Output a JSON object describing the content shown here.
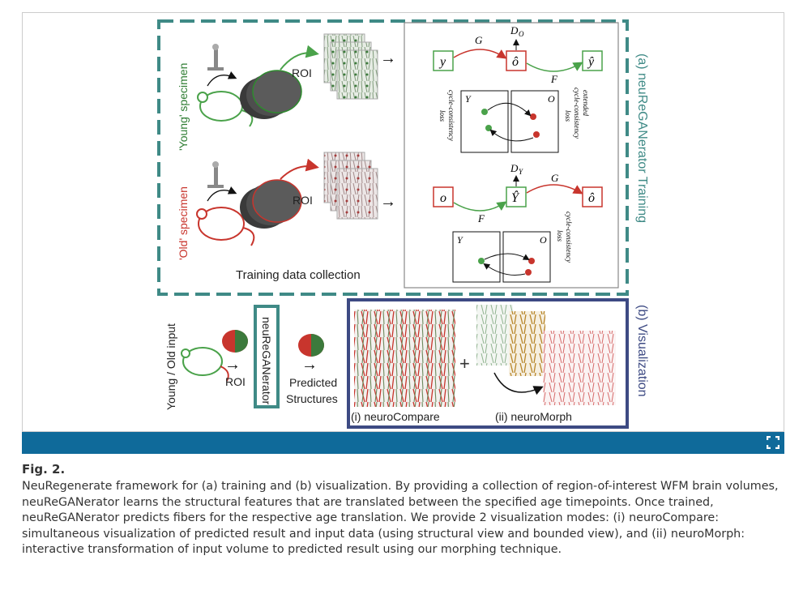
{
  "figure": {
    "panel_a_title": "(a) neuReGANerator Training",
    "panel_b_title": "(b) Visualization",
    "young_label_left": "'Young' specimen",
    "old_label_left": "'Old' specimen",
    "roi": "ROI",
    "training_caption": "Training data collection",
    "model_name": "neuReGANerator",
    "young_old_input": "Young / Old input",
    "predicted": "Predicted",
    "structures": "Structures",
    "neurocompare": "(i) neuroCompare",
    "neuromorph": "(ii) neuroMorph",
    "plus": "+",
    "arrow": "→",
    "diagram": {
      "y": "y",
      "o_hat": "ô",
      "y_hat": "ŷ",
      "o": "o",
      "Y_hat": "Ŷ",
      "G": "G",
      "F": "F",
      "D_O": "D",
      "D_O_sub": "O",
      "D_Y": "D",
      "D_Y_sub": "Y",
      "Y": "Y",
      "O": "O",
      "cycle_loss": "cycle-consistency",
      "loss": "loss",
      "extended": "extended"
    },
    "colors": {
      "teal": "#3f8a86",
      "navy": "#3d4a83",
      "green": "#4aa24a",
      "red": "#c8352d",
      "bar": "#0f6a9a"
    }
  },
  "caption": {
    "title": "Fig. 2.",
    "text": "NeuRegenerate framework for (a) training and (b) visualization. By providing a collection of region-of-interest WFM brain volumes, neuReGANerator learns the structural features that are translated between the specified age timepoints. Once trained, neuReGANerator predicts fibers for the respective age translation. We provide 2 visualization modes: (i) neuroCompare: simultaneous visualization of predicted result and input data (using structural view and bounded view), and (ii) neuroMorph: interactive transformation of input volume to predicted result using our morphing technique."
  },
  "toolbar": {
    "expand_icon": "expand-icon"
  }
}
